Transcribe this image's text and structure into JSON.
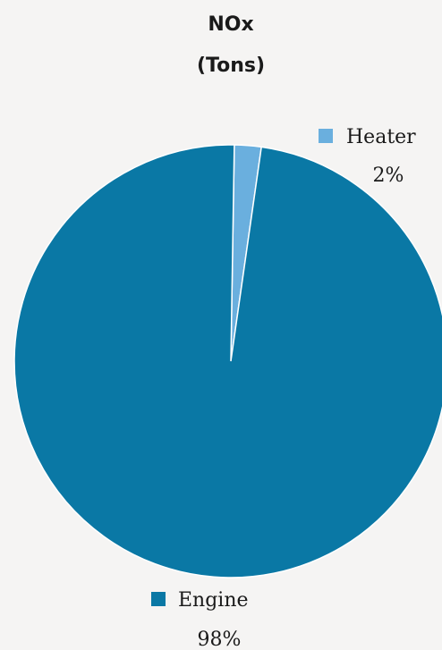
{
  "chart_data": {
    "type": "pie",
    "title_lines": [
      "NOx",
      "(Tons)"
    ],
    "slices": [
      {
        "label": "Heater",
        "percent_label": "2%",
        "value": 2,
        "color": "#6aafde"
      },
      {
        "label": "Engine",
        "percent_label": "98%",
        "value": 98,
        "color": "#0a78a5"
      }
    ],
    "legend_placement": "next to each slice"
  },
  "colors": {
    "background": "#f5f4f3",
    "heater": "#6aafde",
    "engine": "#0a78a5"
  }
}
